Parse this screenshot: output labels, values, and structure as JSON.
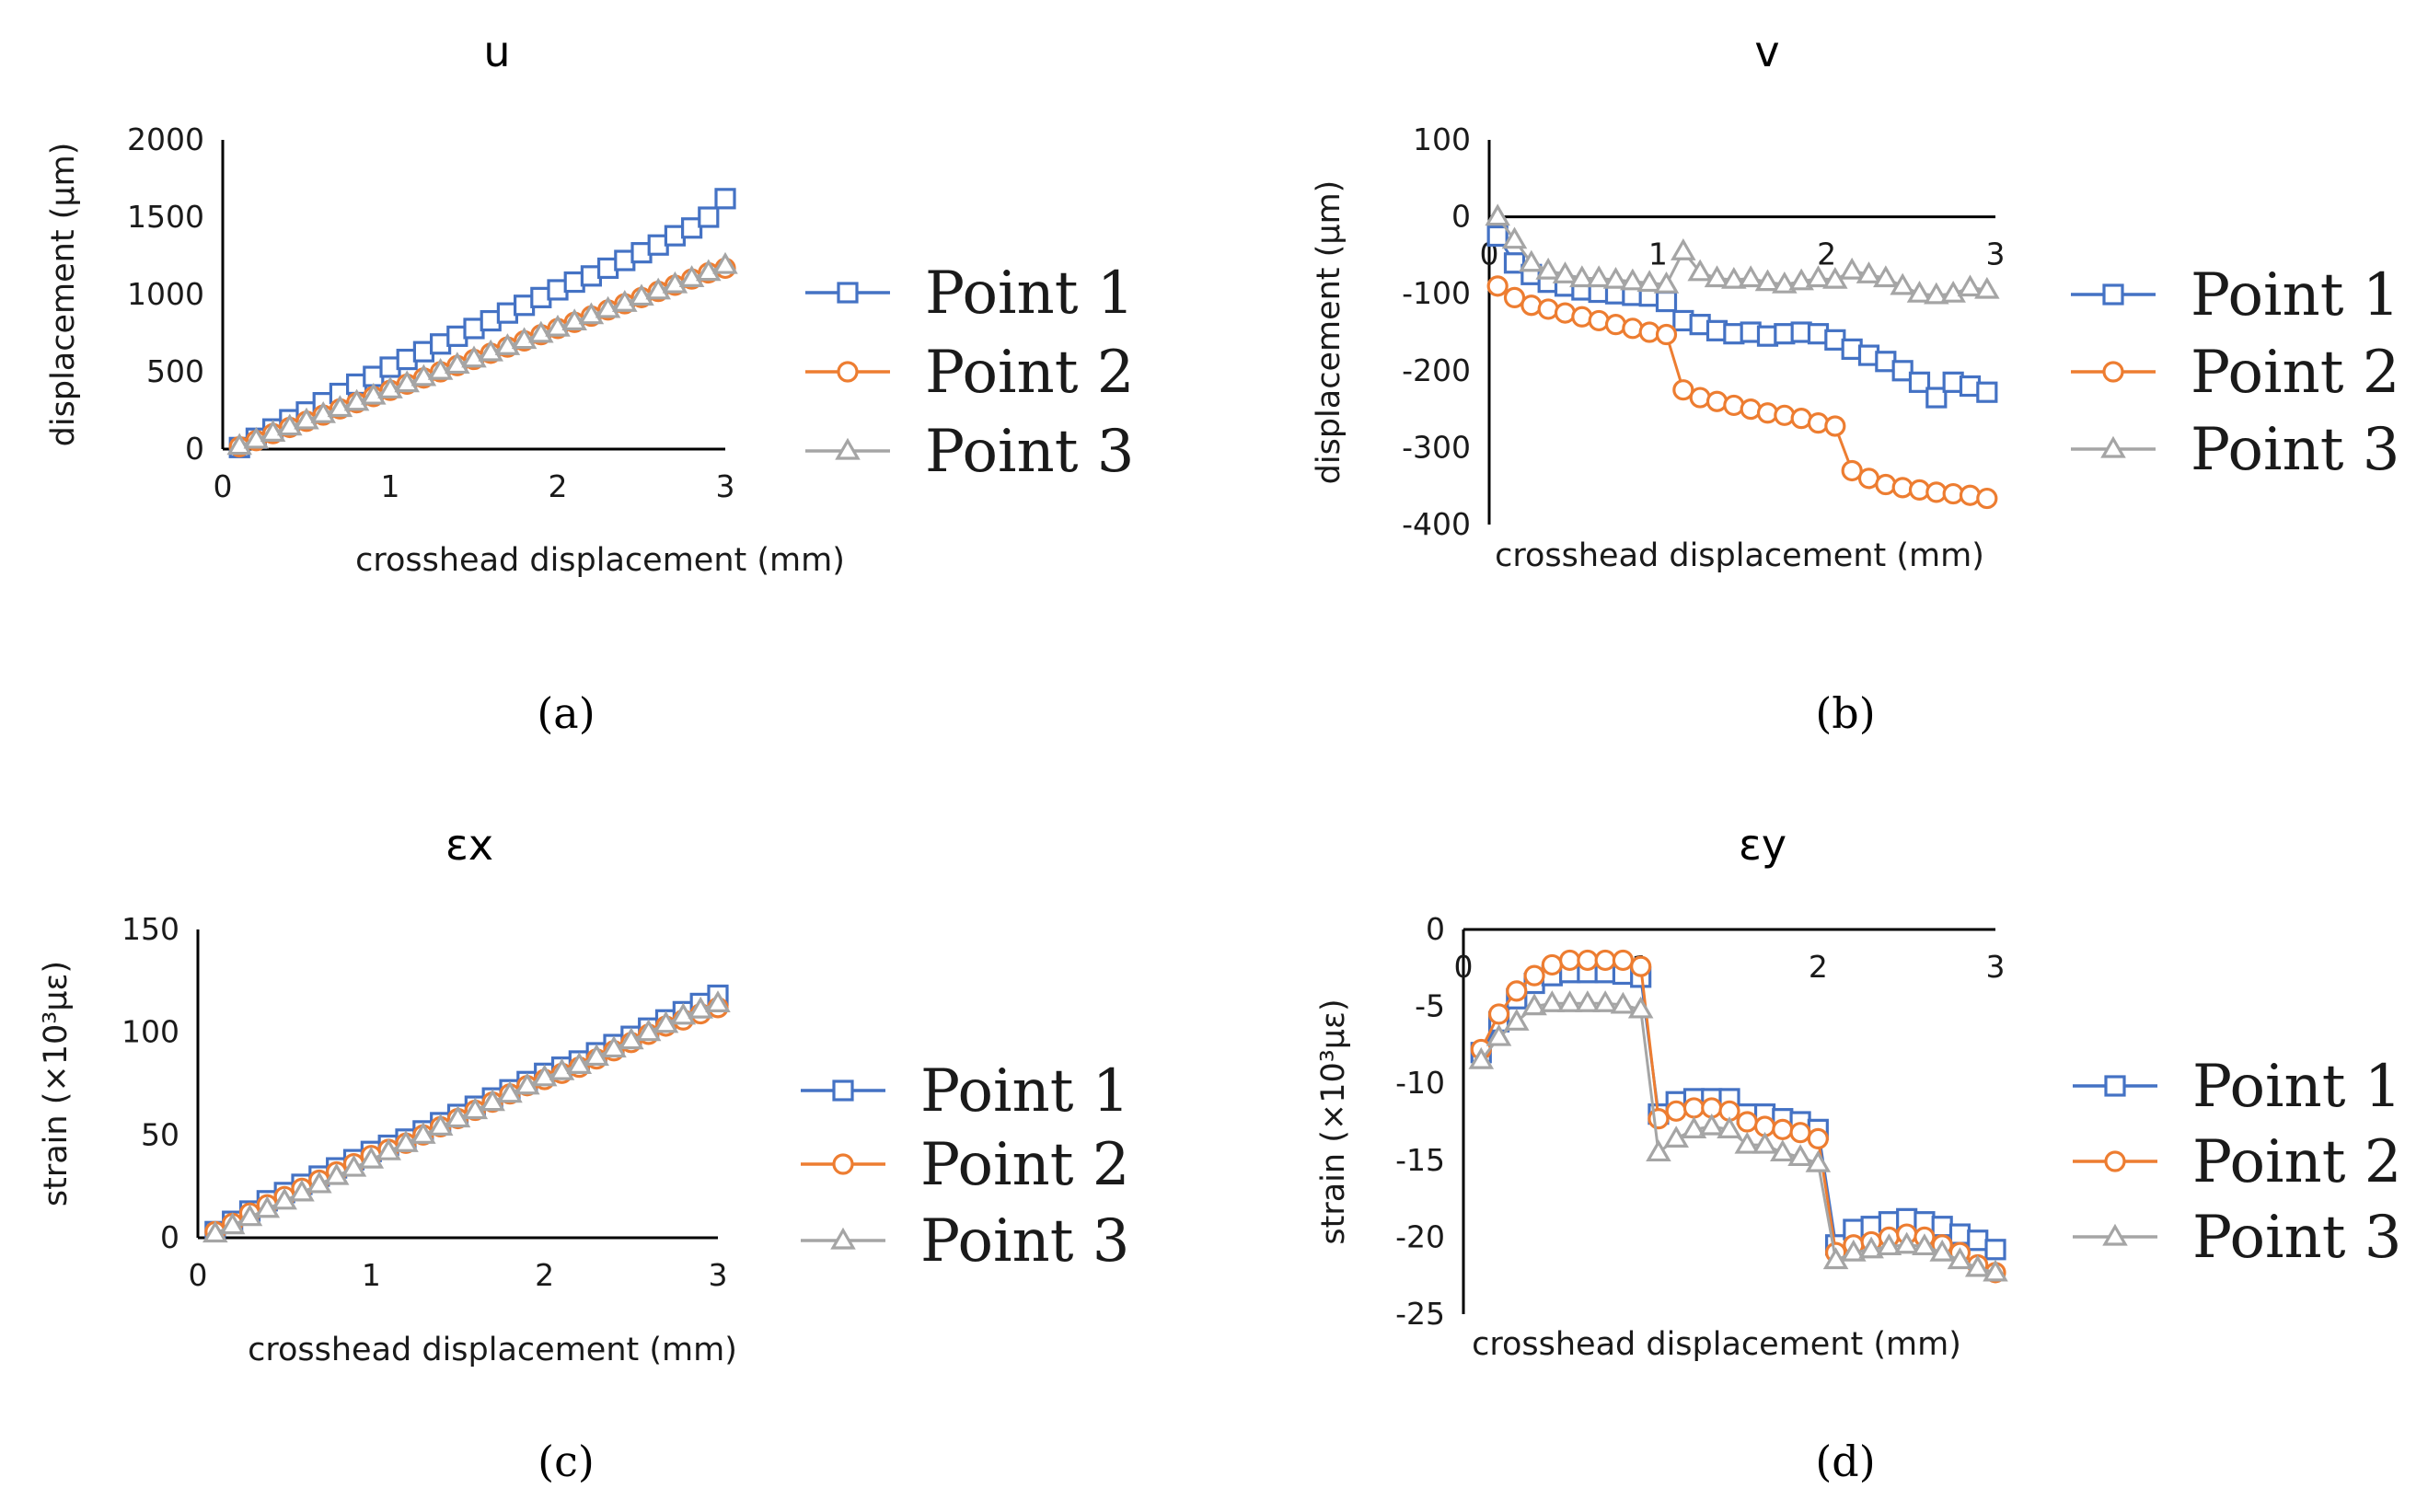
{
  "colors": {
    "point1": "#4472C4",
    "point2": "#ED7D31",
    "point3": "#A5A5A5",
    "axis": "#000000"
  },
  "chart_data": [
    {
      "id": "a",
      "type": "line",
      "title": "u",
      "caption": "(a)",
      "xlabel": "crosshead displacement (mm)",
      "ylabel": "displacement (μm)",
      "xlim": [
        0,
        3
      ],
      "ylim": [
        0,
        2000
      ],
      "xticks": [
        0,
        1,
        2,
        3
      ],
      "yticks": [
        0,
        500,
        1000,
        1500,
        2000
      ],
      "grid": false,
      "legend_position": "right",
      "series": [
        {
          "name": "Point 1",
          "marker": "square",
          "color": "point1",
          "x": [
            0.1,
            0.2,
            0.3,
            0.4,
            0.5,
            0.6,
            0.7,
            0.8,
            0.9,
            1.0,
            1.1,
            1.2,
            1.3,
            1.4,
            1.5,
            1.6,
            1.7,
            1.8,
            1.9,
            2.0,
            2.1,
            2.2,
            2.3,
            2.4,
            2.5,
            2.6,
            2.7,
            2.8,
            2.9,
            3.0
          ],
          "y": [
            10,
            70,
            130,
            190,
            240,
            300,
            360,
            420,
            470,
            530,
            580,
            630,
            680,
            730,
            780,
            830,
            880,
            930,
            980,
            1030,
            1080,
            1120,
            1170,
            1220,
            1270,
            1320,
            1380,
            1430,
            1500,
            1620
          ]
        },
        {
          "name": "Point 2",
          "marker": "circle",
          "color": "point2",
          "x": [
            0.1,
            0.2,
            0.3,
            0.4,
            0.5,
            0.6,
            0.7,
            0.8,
            0.9,
            1.0,
            1.1,
            1.2,
            1.3,
            1.4,
            1.5,
            1.6,
            1.7,
            1.8,
            1.9,
            2.0,
            2.1,
            2.2,
            2.3,
            2.4,
            2.5,
            2.6,
            2.7,
            2.8,
            2.9,
            3.0
          ],
          "y": [
            15,
            55,
            100,
            140,
            180,
            220,
            260,
            300,
            340,
            380,
            420,
            460,
            500,
            540,
            580,
            620,
            660,
            700,
            740,
            780,
            820,
            860,
            900,
            940,
            980,
            1020,
            1060,
            1100,
            1140,
            1170
          ]
        },
        {
          "name": "Point 3",
          "marker": "triangle",
          "color": "point3",
          "x": [
            0.1,
            0.2,
            0.3,
            0.4,
            0.5,
            0.6,
            0.7,
            0.8,
            0.9,
            1.0,
            1.1,
            1.2,
            1.3,
            1.4,
            1.5,
            1.6,
            1.7,
            1.8,
            1.9,
            2.0,
            2.1,
            2.2,
            2.3,
            2.4,
            2.5,
            2.6,
            2.7,
            2.8,
            2.9,
            3.0
          ],
          "y": [
            20,
            60,
            105,
            145,
            185,
            225,
            265,
            305,
            345,
            385,
            425,
            465,
            505,
            545,
            585,
            625,
            665,
            705,
            745,
            785,
            825,
            865,
            905,
            945,
            985,
            1025,
            1065,
            1105,
            1145,
            1190
          ]
        }
      ]
    },
    {
      "id": "b",
      "type": "line",
      "title": "v",
      "caption": "(b)",
      "xlabel": "crosshead displacement (mm)",
      "ylabel": "displacement (μm)",
      "xlim": [
        0,
        3
      ],
      "ylim": [
        -400,
        100
      ],
      "xticks": [
        0,
        1,
        2,
        3
      ],
      "yticks": [
        -400,
        -300,
        -200,
        -100,
        0,
        100
      ],
      "grid": false,
      "legend_position": "right",
      "series": [
        {
          "name": "Point 1",
          "marker": "square",
          "color": "point1",
          "x": [
            0.05,
            0.15,
            0.25,
            0.35,
            0.45,
            0.55,
            0.65,
            0.75,
            0.85,
            0.95,
            1.05,
            1.15,
            1.25,
            1.35,
            1.45,
            1.55,
            1.65,
            1.75,
            1.85,
            1.95,
            2.05,
            2.15,
            2.25,
            2.35,
            2.45,
            2.55,
            2.65,
            2.75,
            2.85,
            2.95
          ],
          "y": [
            -25,
            -60,
            -75,
            -85,
            -90,
            -95,
            -98,
            -100,
            -102,
            -103,
            -110,
            -135,
            -140,
            -148,
            -152,
            -150,
            -155,
            -152,
            -150,
            -152,
            -160,
            -172,
            -180,
            -188,
            -200,
            -215,
            -235,
            -215,
            -220,
            -228
          ]
        },
        {
          "name": "Point 2",
          "marker": "circle",
          "color": "point2",
          "x": [
            0.05,
            0.15,
            0.25,
            0.35,
            0.45,
            0.55,
            0.65,
            0.75,
            0.85,
            0.95,
            1.05,
            1.15,
            1.25,
            1.35,
            1.45,
            1.55,
            1.65,
            1.75,
            1.85,
            1.95,
            2.05,
            2.15,
            2.25,
            2.35,
            2.45,
            2.55,
            2.65,
            2.75,
            2.85,
            2.95
          ],
          "y": [
            -90,
            -105,
            -115,
            -120,
            -125,
            -130,
            -135,
            -140,
            -145,
            -150,
            -153,
            -225,
            -235,
            -240,
            -245,
            -250,
            -255,
            -258,
            -262,
            -268,
            -272,
            -330,
            -340,
            -348,
            -352,
            -355,
            -358,
            -360,
            -362,
            -366
          ]
        },
        {
          "name": "Point 3",
          "marker": "triangle",
          "color": "point3",
          "x": [
            0.05,
            0.15,
            0.25,
            0.35,
            0.45,
            0.55,
            0.65,
            0.75,
            0.85,
            0.95,
            1.05,
            1.15,
            1.25,
            1.35,
            1.45,
            1.55,
            1.65,
            1.75,
            1.85,
            1.95,
            2.05,
            2.15,
            2.25,
            2.35,
            2.45,
            2.55,
            2.65,
            2.75,
            2.85,
            2.95
          ],
          "y": [
            0,
            -30,
            -60,
            -70,
            -75,
            -80,
            -80,
            -82,
            -84,
            -86,
            -88,
            -45,
            -72,
            -80,
            -82,
            -80,
            -85,
            -88,
            -84,
            -80,
            -82,
            -70,
            -75,
            -80,
            -90,
            -100,
            -102,
            -100,
            -92,
            -95
          ]
        }
      ]
    },
    {
      "id": "c",
      "type": "line",
      "title": "εx",
      "caption": "(c)",
      "xlabel": "crosshead displacement (mm)",
      "ylabel": "strain (×10³με)",
      "xlim": [
        0,
        3
      ],
      "ylim": [
        0,
        150
      ],
      "xticks": [
        0,
        1,
        2,
        3
      ],
      "yticks": [
        0,
        50,
        100,
        150
      ],
      "grid": false,
      "legend_position": "right",
      "series": [
        {
          "name": "Point 1",
          "marker": "square",
          "color": "point1",
          "x": [
            0.1,
            0.2,
            0.3,
            0.4,
            0.5,
            0.6,
            0.7,
            0.8,
            0.9,
            1.0,
            1.1,
            1.2,
            1.3,
            1.4,
            1.5,
            1.6,
            1.7,
            1.8,
            1.9,
            2.0,
            2.1,
            2.2,
            2.3,
            2.4,
            2.5,
            2.6,
            2.7,
            2.8,
            2.9,
            3.0
          ],
          "y": [
            3,
            8,
            13,
            18,
            22,
            26,
            30,
            34,
            38,
            42,
            45,
            48,
            52,
            56,
            60,
            64,
            68,
            72,
            76,
            80,
            83,
            86,
            90,
            94,
            98,
            102,
            106,
            110,
            114,
            118
          ]
        },
        {
          "name": "Point 2",
          "marker": "circle",
          "color": "point2",
          "x": [
            0.1,
            0.2,
            0.3,
            0.4,
            0.5,
            0.6,
            0.7,
            0.8,
            0.9,
            1.0,
            1.1,
            1.2,
            1.3,
            1.4,
            1.5,
            1.6,
            1.7,
            1.8,
            1.9,
            2.0,
            2.1,
            2.2,
            2.3,
            2.4,
            2.5,
            2.6,
            2.7,
            2.8,
            2.9,
            3.0
          ],
          "y": [
            3,
            7,
            12,
            16,
            20,
            24,
            28,
            32,
            36,
            40,
            43,
            46,
            50,
            54,
            58,
            62,
            66,
            70,
            74,
            77,
            80,
            83,
            87,
            91,
            95,
            99,
            103,
            106,
            109,
            112
          ]
        },
        {
          "name": "Point 3",
          "marker": "triangle",
          "color": "point3",
          "x": [
            0.1,
            0.2,
            0.3,
            0.4,
            0.5,
            0.6,
            0.7,
            0.8,
            0.9,
            1.0,
            1.1,
            1.2,
            1.3,
            1.4,
            1.5,
            1.6,
            1.7,
            1.8,
            1.9,
            2.0,
            2.1,
            2.2,
            2.3,
            2.4,
            2.5,
            2.6,
            2.7,
            2.8,
            2.9,
            3.0
          ],
          "y": [
            2,
            6,
            10,
            14,
            18,
            22,
            26,
            30,
            34,
            38,
            42,
            46,
            50,
            54,
            58,
            62,
            66,
            70,
            74,
            78,
            81,
            84,
            88,
            92,
            96,
            100,
            104,
            108,
            111,
            114
          ]
        }
      ]
    },
    {
      "id": "d",
      "type": "line",
      "title": "εy",
      "caption": "(d)",
      "xlabel": "crosshead displacement (mm)",
      "ylabel": "strain (×10³με)",
      "xlim": [
        0,
        3
      ],
      "ylim": [
        -25,
        0
      ],
      "xticks": [
        0,
        1,
        2,
        3
      ],
      "yticks": [
        -25,
        -20,
        -15,
        -10,
        -5,
        0
      ],
      "grid": false,
      "legend_position": "right",
      "series": [
        {
          "name": "Point 1",
          "marker": "square",
          "color": "point1",
          "x": [
            0.1,
            0.2,
            0.3,
            0.4,
            0.5,
            0.6,
            0.7,
            0.8,
            0.9,
            1.0,
            1.1,
            1.2,
            1.3,
            1.4,
            1.5,
            1.6,
            1.7,
            1.8,
            1.9,
            2.0,
            2.1,
            2.2,
            2.3,
            2.4,
            2.5,
            2.6,
            2.7,
            2.8,
            2.9,
            3.0
          ],
          "y": [
            -8,
            -6,
            -4.5,
            -3.5,
            -3,
            -2.8,
            -2.8,
            -2.8,
            -2.9,
            -3.1,
            -12,
            -11.2,
            -11,
            -11,
            -11,
            -12,
            -12,
            -12.3,
            -12.5,
            -13,
            -20.5,
            -19.5,
            -19.3,
            -19,
            -18.8,
            -19,
            -19.3,
            -19.8,
            -20.2,
            -20.8
          ]
        },
        {
          "name": "Point 2",
          "marker": "circle",
          "color": "point2",
          "x": [
            0.1,
            0.2,
            0.3,
            0.4,
            0.5,
            0.6,
            0.7,
            0.8,
            0.9,
            1.0,
            1.1,
            1.2,
            1.3,
            1.4,
            1.5,
            1.6,
            1.7,
            1.8,
            1.9,
            2.0,
            2.1,
            2.2,
            2.3,
            2.4,
            2.5,
            2.6,
            2.7,
            2.8,
            2.9,
            3.0
          ],
          "y": [
            -7.8,
            -5.5,
            -4,
            -3,
            -2.3,
            -2,
            -2,
            -2,
            -2,
            -2.4,
            -12.3,
            -11.8,
            -11.6,
            -11.6,
            -11.8,
            -12.5,
            -12.8,
            -13,
            -13.2,
            -13.6,
            -21,
            -20.5,
            -20.3,
            -20,
            -19.8,
            -20,
            -20.5,
            -21,
            -21.8,
            -22.3
          ]
        },
        {
          "name": "Point 3",
          "marker": "triangle",
          "color": "point3",
          "x": [
            0.1,
            0.2,
            0.3,
            0.4,
            0.5,
            0.6,
            0.7,
            0.8,
            0.9,
            1.0,
            1.1,
            1.2,
            1.3,
            1.4,
            1.5,
            1.6,
            1.7,
            1.8,
            1.9,
            2.0,
            2.1,
            2.2,
            2.3,
            2.4,
            2.5,
            2.6,
            2.7,
            2.8,
            2.9,
            3.0
          ],
          "y": [
            -8.5,
            -7,
            -6,
            -5,
            -4.8,
            -4.8,
            -4.8,
            -4.8,
            -4.9,
            -5.2,
            -14.5,
            -13.6,
            -13,
            -12.8,
            -13,
            -14,
            -14,
            -14.5,
            -14.8,
            -15.2,
            -21.5,
            -21,
            -20.8,
            -20.6,
            -20.5,
            -20.6,
            -21,
            -21.5,
            -22,
            -22.3
          ]
        }
      ]
    }
  ]
}
